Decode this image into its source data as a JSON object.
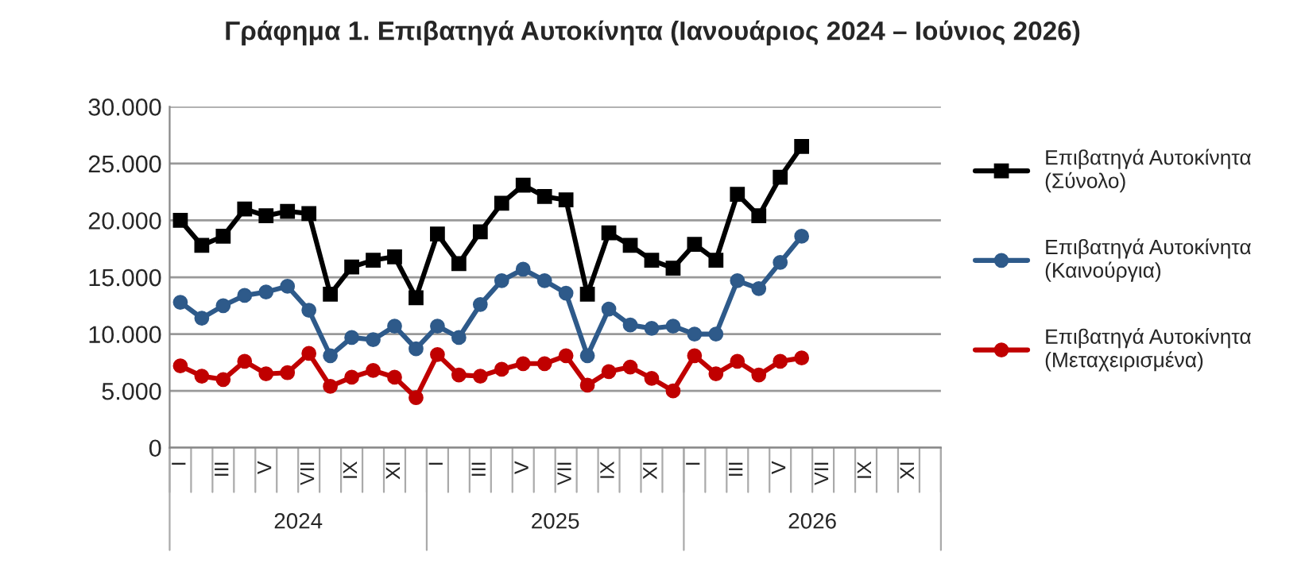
{
  "chart_data": {
    "type": "line",
    "title": "Γράφημα 1. Επιβατηγά Αυτοκίνητα (Ιανουάριος 2024 – Ιούνιος 2026)",
    "categories": [
      "I",
      null,
      "III",
      null,
      "V",
      null,
      "VII",
      null,
      "IX",
      null,
      "XI",
      null,
      "I",
      null,
      "III",
      null,
      "V",
      null,
      "VII",
      null,
      "IX",
      null,
      "XI",
      null,
      "I",
      null,
      "III",
      null,
      "V",
      null,
      "VII",
      null,
      "IX",
      null,
      "XI",
      null
    ],
    "annotations": [
      "2024",
      "2025",
      "2026"
    ],
    "series": [
      {
        "name": "Επιβατηγά Αυτοκίνητα\n(Σύνολο)",
        "color": "#000000",
        "marker": "square",
        "values": [
          20000,
          17800,
          18600,
          21000,
          20400,
          20800,
          20600,
          13500,
          15900,
          16500,
          16800,
          13200,
          18800,
          16200,
          19000,
          21500,
          23100,
          22100,
          21800,
          13500,
          18900,
          17800,
          16500,
          15800,
          17900,
          16500,
          22300,
          20400,
          23800,
          26500,
          null,
          null,
          null,
          null,
          null,
          null
        ]
      },
      {
        "name": "Επιβατηγά Αυτοκίνητα\n(Καινούργια)",
        "color": "#2e5a8a",
        "marker": "circle",
        "values": [
          12800,
          11400,
          12500,
          13400,
          13700,
          14200,
          12100,
          8100,
          9700,
          9500,
          10700,
          8700,
          10700,
          9700,
          12600,
          14700,
          15700,
          14700,
          13600,
          8100,
          12200,
          10800,
          10500,
          10700,
          10000,
          10000,
          14700,
          14000,
          16300,
          18600,
          null,
          null,
          null,
          null,
          null,
          null
        ]
      },
      {
        "name": "Επιβατηγά Αυτοκίνητα\n(Μεταχειρισμένα)",
        "color": "#c00000",
        "marker": "circle",
        "values": [
          7200,
          6300,
          6000,
          7600,
          6500,
          6600,
          8300,
          5400,
          6200,
          6800,
          6200,
          4400,
          8200,
          6400,
          6300,
          6900,
          7400,
          7400,
          8100,
          5500,
          6700,
          7100,
          6100,
          5000,
          8100,
          6500,
          7600,
          6400,
          7600,
          7900,
          null,
          null,
          null,
          null,
          null,
          null
        ]
      }
    ],
    "ylim": [
      0,
      30000
    ],
    "yticks": [
      {
        "value": 0,
        "label": "0"
      },
      {
        "value": 5000,
        "label": "5.000"
      },
      {
        "value": 10000,
        "label": "10.000"
      },
      {
        "value": 15000,
        "label": "15.000"
      },
      {
        "value": 20000,
        "label": "20.000"
      },
      {
        "value": 25000,
        "label": "25.000"
      },
      {
        "value": 30000,
        "label": "30.000"
      }
    ],
    "grid": "y",
    "legend": "right",
    "line_style": "solid"
  }
}
